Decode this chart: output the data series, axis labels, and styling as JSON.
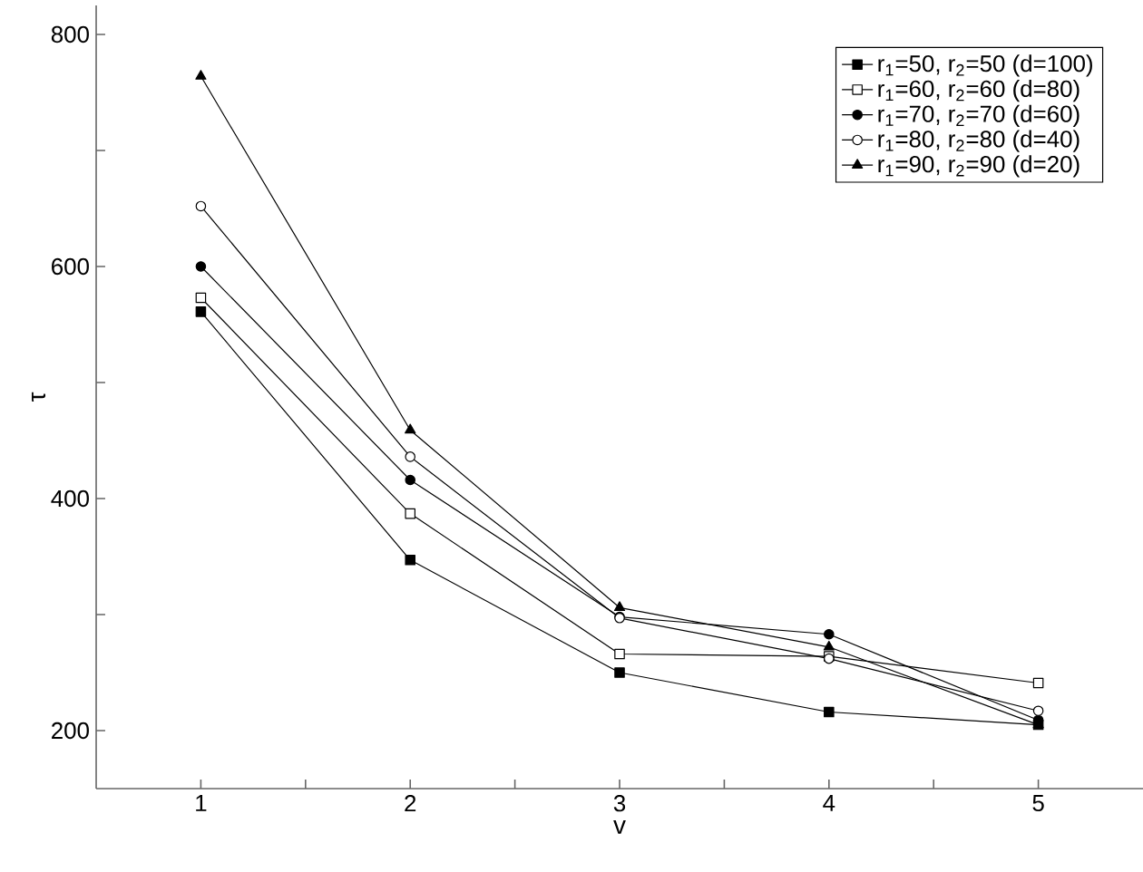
{
  "chart_data": {
    "type": "line",
    "xlabel": "v",
    "ylabel": "τ",
    "x": [
      1,
      2,
      3,
      4,
      5
    ],
    "xlim": [
      0.5,
      5.5
    ],
    "ylim": [
      150,
      825
    ],
    "xticks": [
      1,
      {
        "value": 1.5,
        "label": null
      },
      2,
      {
        "value": 2.5,
        "label": null
      },
      3,
      {
        "value": 3.5,
        "label": null
      },
      4,
      {
        "value": 4.5,
        "label": null
      },
      5
    ],
    "yticks": [
      200,
      {
        "value": 300,
        "label": null
      },
      400,
      {
        "value": 500,
        "label": null
      },
      600,
      {
        "value": 700,
        "label": null
      },
      800
    ],
    "legend": "top right",
    "line_style": "solid",
    "series": [
      {
        "name": "r$_{1}$=50, r$_{2}$=50 (d=100)",
        "color": "#000000",
        "marker": "square",
        "values": [
          561,
          347,
          250,
          216,
          205
        ]
      },
      {
        "name": "r$_{1}$=60, r$_{2}$=60 (d=80)",
        "color": "#000000",
        "marker": "square open",
        "values": [
          573,
          387,
          266,
          264,
          241
        ]
      },
      {
        "name": "r$_{1}$=70, r$_{2}$=70 (d=60)",
        "color": "#000000",
        "marker": "circle",
        "values": [
          600,
          416,
          298,
          283,
          209
        ]
      },
      {
        "name": "r$_{1}$=80, r$_{2}$=80 (d=40)",
        "color": "#000000",
        "marker": "circle open",
        "values": [
          652,
          436,
          297,
          262,
          217
        ]
      },
      {
        "name": "r$_{1}$=90, r$_{2}$=90 (d=20)",
        "color": "#000000",
        "marker": "triangle",
        "values": [
          764,
          459,
          306,
          272,
          205
        ]
      }
    ]
  }
}
